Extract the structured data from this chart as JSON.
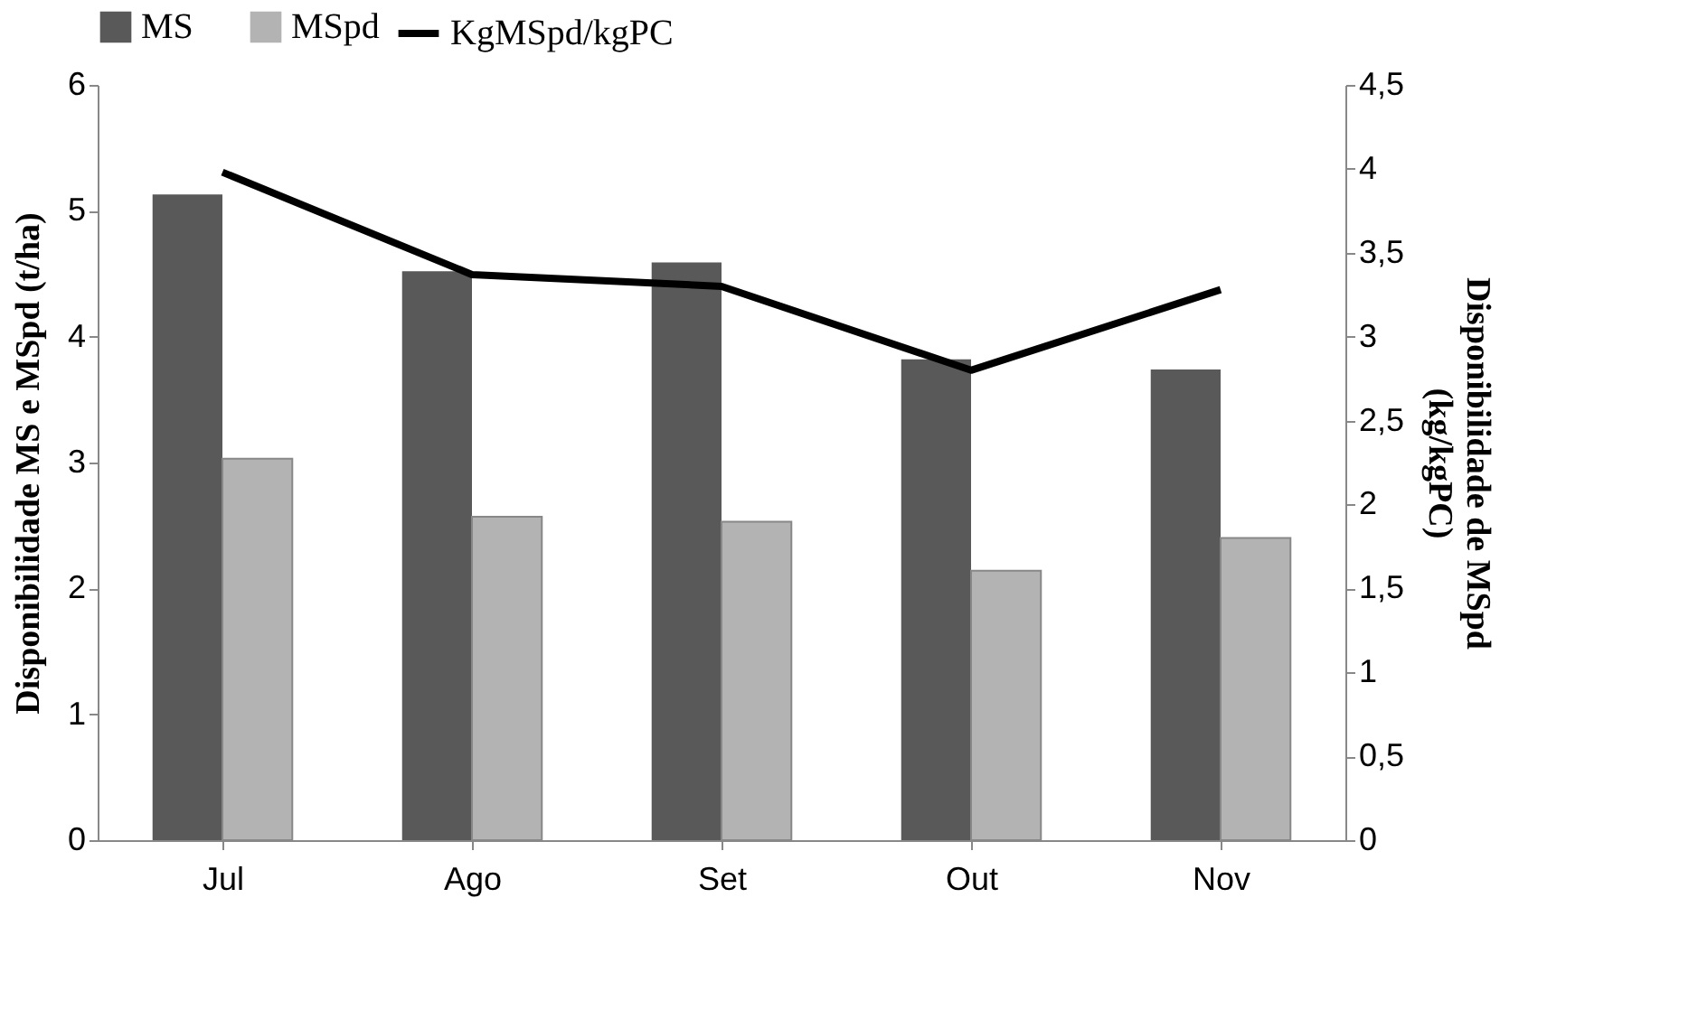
{
  "chart_data": {
    "type": "bar",
    "categories": [
      "Jul",
      "Ago",
      "Set",
      "Out",
      "Nov"
    ],
    "ylabel": "Disponibilidade MS e MSpd (t/ha)",
    "y2label": "Disponibilidade de MSpd\n(kg/kgPC)",
    "ylim": [
      0,
      6
    ],
    "yticks": [
      0,
      1,
      2,
      3,
      4,
      5,
      6
    ],
    "y2lim": [
      0,
      4.5
    ],
    "y2ticks": [
      0,
      {
        "value": 0.5,
        "label": "0,5"
      },
      1,
      {
        "value": 1.5,
        "label": "1,5"
      },
      2,
      {
        "value": 2.5,
        "label": "2,5"
      },
      3,
      {
        "value": 3.5,
        "label": "3,5"
      },
      4,
      {
        "value": 4.5,
        "label": "4,5"
      }
    ],
    "grid": false,
    "legend": "top",
    "series": [
      {
        "name": "MS",
        "color": "#595959",
        "values": [
          5.13,
          4.52,
          4.59,
          3.82,
          3.74
        ]
      },
      {
        "name": "MSpd",
        "color": "#b3b3b3",
        "values": [
          3.03,
          2.57,
          2.53,
          2.14,
          2.4
        ]
      },
      {
        "name": "KgMSpd/kgPC",
        "type": "line",
        "axis": "y2",
        "color": "#000000",
        "line_style": "solid",
        "marker": "none",
        "values": [
          3.98,
          3.37,
          3.3,
          2.8,
          3.28
        ]
      }
    ]
  }
}
